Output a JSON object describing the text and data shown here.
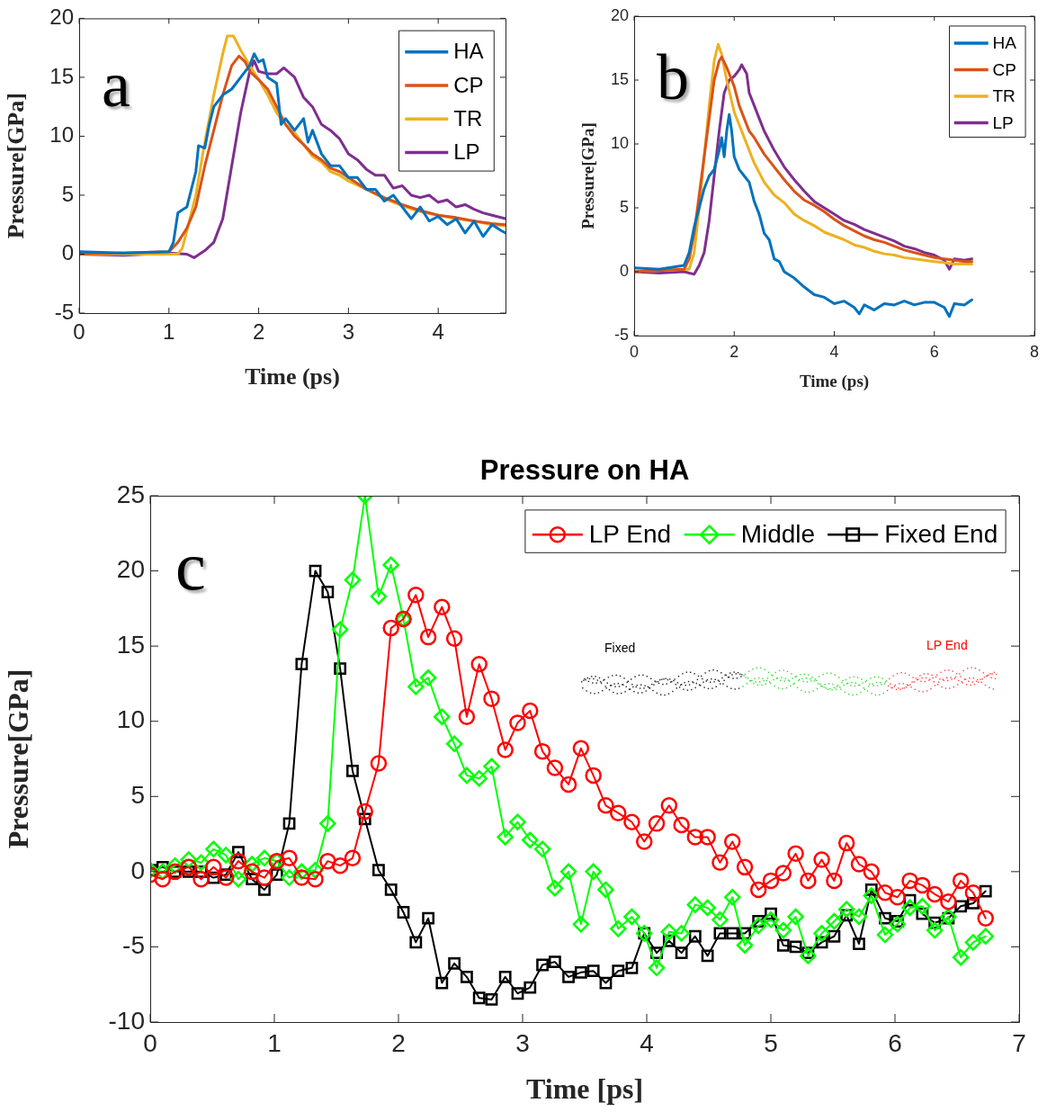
{
  "chart_data": [
    {
      "type": "line",
      "xlabel": "Time (ps)",
      "ylabel": "Pressure[GPa]",
      "xlim": [
        0,
        4.75
      ],
      "xticks": [
        0,
        1,
        2,
        3,
        4
      ],
      "ylim": [
        -5,
        20
      ],
      "yticks": [
        -5,
        0,
        5,
        10,
        15,
        20
      ],
      "legend": "top right",
      "annotations": [
        "a"
      ],
      "series": [
        {
          "name": "HA",
          "color": "#0072bd",
          "x": [
            0,
            0.5,
            1.0,
            1.05,
            1.1,
            1.2,
            1.3,
            1.33,
            1.4,
            1.45,
            1.5,
            1.6,
            1.7,
            1.8,
            1.9,
            1.95,
            2.0,
            2.05,
            2.1,
            2.2,
            2.25,
            2.3,
            2.4,
            2.5,
            2.55,
            2.6,
            2.7,
            2.8,
            2.9,
            3.0,
            3.1,
            3.2,
            3.3,
            3.4,
            3.5,
            3.6,
            3.7,
            3.8,
            3.9,
            4.0,
            4.1,
            4.2,
            4.3,
            4.4,
            4.5,
            4.6,
            4.7,
            4.75
          ],
          "values": [
            0.2,
            0.1,
            0.2,
            1,
            3.5,
            4,
            7,
            9.2,
            9,
            11,
            12.5,
            13.5,
            14,
            15,
            16,
            17,
            16.3,
            16.5,
            15,
            14.5,
            11,
            11.5,
            10.5,
            11.5,
            9.5,
            10.5,
            8.5,
            7.5,
            7.5,
            6.5,
            6.5,
            5.5,
            5.5,
            4.5,
            5,
            4,
            3,
            4,
            2.8,
            3.2,
            2.5,
            3,
            1.8,
            2.8,
            1.5,
            2.5,
            2,
            1.8
          ]
        },
        {
          "name": "CP",
          "color": "#d95319",
          "x": [
            0,
            1.0,
            1.1,
            1.2,
            1.3,
            1.4,
            1.5,
            1.6,
            1.7,
            1.78,
            1.85,
            1.9,
            2.0,
            2.1,
            2.2,
            2.3,
            2.4,
            2.5,
            2.6,
            2.7,
            2.8,
            2.9,
            3.0,
            3.2,
            3.4,
            3.6,
            3.8,
            4.0,
            4.2,
            4.4,
            4.6,
            4.75
          ],
          "values": [
            0,
            0.2,
            1,
            2.2,
            4,
            7.5,
            10.5,
            13.5,
            16,
            16.8,
            16.3,
            15.5,
            14.8,
            14,
            12.5,
            11,
            10,
            9.3,
            8.5,
            8,
            7.3,
            7,
            6.5,
            5.5,
            4.8,
            4.2,
            3.7,
            3.3,
            3.1,
            2.8,
            2.6,
            2.5
          ]
        },
        {
          "name": "TR",
          "color": "#edb120",
          "x": [
            0,
            1.1,
            1.15,
            1.2,
            1.3,
            1.4,
            1.5,
            1.6,
            1.65,
            1.72,
            1.8,
            1.9,
            2.0,
            2.1,
            2.2,
            2.3,
            2.4,
            2.5,
            2.6,
            2.7,
            2.8,
            2.9,
            3.0,
            3.2,
            3.4,
            3.6,
            3.8,
            4.0,
            4.2,
            4.4,
            4.6,
            4.75
          ],
          "values": [
            0,
            0,
            0.5,
            2,
            5,
            9.5,
            13.5,
            17,
            18.5,
            18.5,
            17.3,
            16,
            14.8,
            13.5,
            12,
            11,
            10.3,
            9.3,
            8.3,
            7.8,
            7,
            6.7,
            6.2,
            5.5,
            4.7,
            4.1,
            3.6,
            3.3,
            3,
            2.8,
            2.5,
            2.4
          ]
        },
        {
          "name": "LP",
          "color": "#7e2f8e",
          "x": [
            0,
            0.5,
            1.0,
            1.2,
            1.28,
            1.4,
            1.5,
            1.6,
            1.7,
            1.8,
            1.9,
            1.95,
            2.0,
            2.1,
            2.2,
            2.28,
            2.4,
            2.5,
            2.6,
            2.7,
            2.8,
            2.9,
            3.0,
            3.1,
            3.2,
            3.3,
            3.4,
            3.5,
            3.6,
            3.7,
            3.8,
            3.9,
            4.0,
            4.1,
            4.2,
            4.3,
            4.4,
            4.5,
            4.6,
            4.75
          ],
          "values": [
            0,
            -0.1,
            0.1,
            0,
            -0.3,
            0.3,
            1,
            3,
            7.5,
            12,
            15.5,
            16.4,
            15.5,
            15.3,
            15.3,
            15.8,
            15,
            13.3,
            12.5,
            11,
            10.5,
            9.8,
            8.5,
            8,
            7.2,
            6.7,
            6.7,
            5.6,
            5.8,
            5,
            4.8,
            5,
            4.4,
            4.6,
            4,
            4.2,
            3.8,
            3.5,
            3.3,
            3
          ]
        }
      ]
    },
    {
      "type": "line",
      "xlabel": "Time (ps)",
      "ylabel": "Pressure[GPa]",
      "xlim": [
        0,
        8
      ],
      "xticks": [
        0,
        2,
        4,
        6,
        8
      ],
      "ylim": [
        -5,
        20
      ],
      "yticks": [
        -5,
        0,
        5,
        10,
        15,
        20
      ],
      "legend": "top right",
      "annotations": [
        "b"
      ],
      "series": [
        {
          "name": "HA",
          "color": "#0072bd",
          "x": [
            0,
            0.5,
            1.0,
            1.1,
            1.2,
            1.3,
            1.4,
            1.5,
            1.6,
            1.7,
            1.75,
            1.8,
            1.85,
            1.9,
            1.95,
            2.0,
            2.1,
            2.2,
            2.3,
            2.4,
            2.5,
            2.6,
            2.7,
            2.8,
            2.9,
            3.0,
            3.2,
            3.4,
            3.6,
            3.8,
            4.0,
            4.2,
            4.4,
            4.5,
            4.6,
            4.8,
            5.0,
            5.2,
            5.4,
            5.6,
            5.8,
            6.0,
            6.2,
            6.3,
            6.4,
            6.6,
            6.75
          ],
          "values": [
            0.3,
            0.2,
            0.5,
            1.5,
            3.5,
            5,
            6.5,
            7.5,
            8,
            9.5,
            10.5,
            9,
            11,
            12.3,
            11,
            9,
            8,
            7.5,
            7,
            5.5,
            4.5,
            3,
            2.5,
            1,
            0.8,
            0,
            -0.5,
            -1.2,
            -1.8,
            -2,
            -2.5,
            -2.3,
            -2.8,
            -3.3,
            -2.6,
            -3,
            -2.5,
            -2.6,
            -2.3,
            -2.6,
            -2.4,
            -2.4,
            -2.8,
            -3.5,
            -2.5,
            -2.6,
            -2.2
          ]
        },
        {
          "name": "CP",
          "color": "#d95319",
          "x": [
            0,
            1.0,
            1.1,
            1.2,
            1.3,
            1.4,
            1.5,
            1.6,
            1.7,
            1.75,
            1.85,
            2.0,
            2.1,
            2.2,
            2.3,
            2.4,
            2.6,
            2.8,
            3.0,
            3.2,
            3.4,
            3.6,
            3.8,
            4.0,
            4.2,
            4.4,
            4.6,
            4.8,
            5.0,
            5.2,
            5.4,
            5.6,
            5.8,
            6.0,
            6.2,
            6.4,
            6.6,
            6.75
          ],
          "values": [
            0,
            0.2,
            1,
            3,
            6,
            9,
            12,
            15,
            16.5,
            16.8,
            16,
            14.5,
            13,
            12,
            11,
            10.5,
            9.2,
            8.2,
            7.2,
            6.3,
            5.6,
            5.2,
            4.7,
            4.1,
            3.6,
            3.2,
            2.8,
            2.5,
            2.3,
            2,
            1.7,
            1.5,
            1.3,
            1.1,
            1,
            0.9,
            0.8,
            0.8
          ]
        },
        {
          "name": "TR",
          "color": "#edb120",
          "x": [
            0,
            1.1,
            1.2,
            1.3,
            1.4,
            1.5,
            1.6,
            1.68,
            1.75,
            1.85,
            2.0,
            2.1,
            2.2,
            2.3,
            2.4,
            2.6,
            2.8,
            3.0,
            3.2,
            3.4,
            3.6,
            3.8,
            4.0,
            4.2,
            4.4,
            4.6,
            4.8,
            5.0,
            5.2,
            5.4,
            5.6,
            5.8,
            6.0,
            6.2,
            6.4,
            6.6,
            6.75
          ],
          "values": [
            0,
            0.2,
            1.5,
            5,
            9,
            13,
            16.5,
            17.8,
            17,
            15,
            12.5,
            11.5,
            10.5,
            9.5,
            8.5,
            7,
            6,
            5.4,
            4.5,
            4,
            3.6,
            3.1,
            2.8,
            2.5,
            2.1,
            1.9,
            1.6,
            1.4,
            1.3,
            1.1,
            1,
            0.9,
            0.8,
            0.7,
            0.6,
            0.6,
            0.6
          ]
        },
        {
          "name": "LP",
          "color": "#7e2f8e",
          "x": [
            0,
            0.5,
            1.0,
            1.2,
            1.3,
            1.4,
            1.5,
            1.6,
            1.7,
            1.8,
            1.9,
            2.0,
            2.1,
            2.15,
            2.25,
            2.3,
            2.4,
            2.5,
            2.6,
            2.8,
            3.0,
            3.2,
            3.4,
            3.6,
            3.8,
            4.0,
            4.2,
            4.4,
            4.6,
            4.8,
            5.0,
            5.2,
            5.4,
            5.6,
            5.8,
            6.0,
            6.2,
            6.3,
            6.4,
            6.6,
            6.75
          ],
          "values": [
            0,
            -0.1,
            0,
            -0.2,
            0.5,
            1.5,
            4,
            7.5,
            11,
            14,
            15,
            15.3,
            15.8,
            16.2,
            15.5,
            14,
            13,
            12,
            11,
            9.5,
            8.2,
            7.2,
            6.3,
            5.5,
            5,
            4.5,
            4,
            3.7,
            3.3,
            3,
            2.7,
            2.4,
            2,
            1.8,
            1.5,
            1.3,
            0.9,
            0.2,
            1,
            0.9,
            1
          ]
        }
      ]
    },
    {
      "type": "line",
      "title": "Pressure on HA",
      "xlabel": "Time [ps]",
      "ylabel": "Pressure[GPa]",
      "xlim": [
        0,
        7
      ],
      "xticks": [
        0,
        1,
        2,
        3,
        4,
        5,
        6,
        7
      ],
      "ylim": [
        -10,
        25
      ],
      "yticks": [
        -10,
        -5,
        0,
        5,
        10,
        15,
        20,
        25
      ],
      "legend": "top",
      "annotations": [
        "c",
        "Fixed",
        "LP End"
      ],
      "x": [
        0,
        0.1,
        0.2,
        0.31,
        0.41,
        0.51,
        0.61,
        0.71,
        0.82,
        0.92,
        1.02,
        1.12,
        1.22,
        1.33,
        1.43,
        1.53,
        1.63,
        1.73,
        1.84,
        1.94,
        2.04,
        2.14,
        2.24,
        2.35,
        2.45,
        2.55,
        2.65,
        2.75,
        2.86,
        2.96,
        3.06,
        3.16,
        3.26,
        3.37,
        3.47,
        3.57,
        3.67,
        3.77,
        3.88,
        3.98,
        4.08,
        4.18,
        4.28,
        4.39,
        4.49,
        4.59,
        4.69,
        4.79,
        4.9,
        5.0,
        5.1,
        5.2,
        5.3,
        5.41,
        5.51,
        5.61,
        5.71,
        5.81,
        5.92,
        6.02,
        6.12,
        6.22,
        6.32,
        6.43,
        6.53,
        6.63,
        6.73
      ],
      "series": [
        {
          "name": "LP End",
          "color": "#ff0000",
          "marker": "circle",
          "values": [
            -0.2,
            -0.5,
            0,
            0.3,
            -0.5,
            0.3,
            -0.4,
            0.7,
            0,
            -0.4,
            0.7,
            0.9,
            -0.4,
            -0.5,
            0.7,
            0.4,
            0.9,
            4.0,
            7.2,
            16.2,
            16.8,
            18.4,
            15.6,
            17.6,
            15.5,
            10.3,
            13.8,
            11.5,
            8.1,
            9.9,
            10.7,
            8.0,
            6.9,
            5.8,
            8.2,
            6.4,
            4.4,
            3.9,
            3.3,
            2.0,
            3.2,
            4.4,
            3.1,
            2.3,
            2.3,
            0.6,
            2.0,
            0.3,
            -1.2,
            -0.6,
            -0.1,
            1.2,
            -0.6,
            0.8,
            -0.6,
            1.9,
            0.5,
            0,
            -1.4,
            -1.7,
            -0.6,
            -0.9,
            -1.5,
            -2.0,
            -0.6,
            -1.4,
            -3.1
          ]
        },
        {
          "name": "Middle",
          "color": "#00ff00",
          "marker": "diamond",
          "values": [
            0.1,
            0,
            0.4,
            0.8,
            0.6,
            1.5,
            1.1,
            -0.5,
            0.5,
            0.9,
            0.7,
            -0.4,
            0,
            0.1,
            3.2,
            16.1,
            19.4,
            25.0,
            18.3,
            20.4,
            16.8,
            12.3,
            12.9,
            10.3,
            8.5,
            6.4,
            6.2,
            7.0,
            2.3,
            3.3,
            2.1,
            1.5,
            -1.1,
            0,
            -3.5,
            0,
            -1.2,
            -3.8,
            -3.0,
            -4.1,
            -6.4,
            -4.0,
            -4.1,
            -2.2,
            -2.4,
            -3.2,
            -1.7,
            -4.9,
            -3.6,
            -3.2,
            -3.9,
            -3.0,
            -5.6,
            -4.1,
            -3.3,
            -2.5,
            -3.0,
            -1.6,
            -4.2,
            -3.5,
            -2.4,
            -2.3,
            -3.9,
            -3.0,
            -5.7,
            -4.7,
            -4.3
          ]
        },
        {
          "name": "Fixed End",
          "color": "#000000",
          "marker": "square",
          "values": [
            0.1,
            0.3,
            0,
            0,
            0,
            -0.4,
            -0.2,
            1.3,
            -0.5,
            -1.2,
            -0.2,
            3.2,
            13.8,
            20.0,
            18.6,
            13.5,
            6.7,
            3.5,
            0.1,
            -1.2,
            -2.7,
            -4.7,
            -3.1,
            -7.4,
            -6.1,
            -7.0,
            -8.4,
            -8.5,
            -7.0,
            -8.1,
            -7.7,
            -6.2,
            -6.0,
            -7.0,
            -6.7,
            -6.6,
            -7.4,
            -6.6,
            -6.4,
            -4.1,
            -5.4,
            -4.6,
            -5.4,
            -4.3,
            -5.6,
            -4.1,
            -4.1,
            -4.1,
            -3.3,
            -2.8,
            -4.9,
            -5.0,
            -5.4,
            -4.7,
            -4.3,
            -2.9,
            -4.8,
            -1.2,
            -3.1,
            -3.3,
            -1.9,
            -2.8,
            -3.4,
            -3.1,
            -2.3,
            -2.1,
            -1.3
          ]
        }
      ]
    }
  ]
}
